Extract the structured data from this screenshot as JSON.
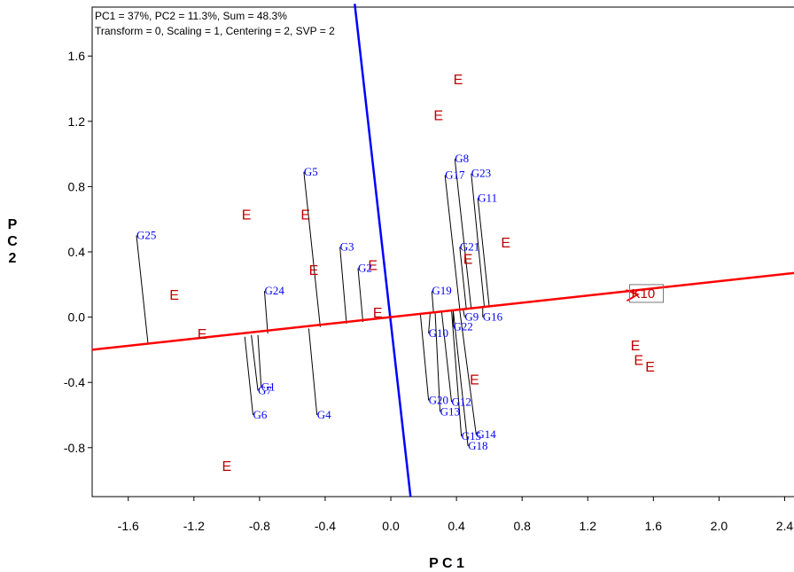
{
  "chart_data": {
    "type": "scatter",
    "annotation_line1": "PC1 = 37%, PC2 = 11.3%, Sum = 48.3%",
    "annotation_line2": "Transform = 0, Scaling = 1, Centering = 2, SVP = 2",
    "xlabel": "P C 1",
    "ylabel": [
      "P",
      "C",
      "2"
    ],
    "xlim": [
      -1.82,
      2.5
    ],
    "ylim": [
      -1.1,
      1.9
    ],
    "xticks": [
      -1.6,
      -1.2,
      -0.8,
      -0.4,
      0.0,
      0.4,
      0.8,
      1.2,
      1.6,
      2.0,
      2.4
    ],
    "xtick_labels": [
      "-1.6",
      "-1.2",
      "-0.8",
      "-0.4",
      "0.0",
      "0.4",
      "0.8",
      "1.2",
      "1.6",
      "2.0",
      "2.4"
    ],
    "yticks": [
      1.6,
      1.2,
      0.8,
      0.4,
      0.0,
      -0.4,
      -0.8
    ],
    "ytick_labels": [
      "1.6",
      "1.2",
      "0.8",
      "0.4",
      "0.0",
      "-0.4",
      "-0.8"
    ],
    "grid": false,
    "colors": {
      "genotype": "#0000ff",
      "environment": "#c00000",
      "axis_line": "#ff0000",
      "perp_line": "#0000ff"
    },
    "aec_axis": {
      "from": [
        -1.82,
        -0.2
      ],
      "to": [
        2.5,
        0.275
      ]
    },
    "perpendicular_axis": {
      "from": [
        -0.22,
        1.92
      ],
      "to": [
        0.12,
        -1.1
      ]
    },
    "ideal_environment": {
      "label": "K10",
      "x": 1.52,
      "y": 0.145,
      "arrow_from": [
        1.25,
        0.115
      ]
    },
    "genotypes": [
      {
        "label": "G1",
        "x": -0.79,
        "y": -0.43,
        "px": -0.81,
        "py": -0.11
      },
      {
        "label": "G2",
        "x": -0.2,
        "y": 0.3,
        "px": -0.17,
        "py": -0.03
      },
      {
        "label": "G3",
        "x": -0.31,
        "y": 0.43,
        "px": -0.27,
        "py": -0.04
      },
      {
        "label": "G4",
        "x": -0.45,
        "y": -0.6,
        "px": -0.5,
        "py": -0.07
      },
      {
        "label": "G5",
        "x": -0.53,
        "y": 0.89,
        "px": -0.43,
        "py": -0.06
      },
      {
        "label": "G6",
        "x": -0.84,
        "y": -0.6,
        "px": -0.89,
        "py": -0.12
      },
      {
        "label": "G7",
        "x": -0.81,
        "y": -0.45,
        "px": -0.85,
        "py": -0.11
      },
      {
        "label": "G8",
        "x": 0.39,
        "y": 0.97,
        "px": 0.49,
        "py": 0.05
      },
      {
        "label": "G9",
        "x": 0.45,
        "y": 0.0,
        "px": 0.44,
        "py": 0.05
      },
      {
        "label": "G10",
        "x": 0.23,
        "y": -0.1,
        "px": 0.24,
        "py": 0.03
      },
      {
        "label": "G11",
        "x": 0.53,
        "y": 0.73,
        "px": 0.6,
        "py": 0.06
      },
      {
        "label": "G12",
        "x": 0.37,
        "y": -0.52,
        "px": 0.31,
        "py": 0.03
      },
      {
        "label": "G13",
        "x": 0.3,
        "y": -0.58,
        "px": 0.27,
        "py": 0.03
      },
      {
        "label": "G14",
        "x": 0.52,
        "y": -0.72,
        "px": 0.42,
        "py": 0.04
      },
      {
        "label": "G15",
        "x": 0.43,
        "y": -0.73,
        "px": 0.37,
        "py": 0.04
      },
      {
        "label": "G16",
        "x": 0.56,
        "y": 0.0,
        "px": 0.56,
        "py": 0.06
      },
      {
        "label": "G17",
        "x": 0.33,
        "y": 0.87,
        "px": 0.42,
        "py": 0.05
      },
      {
        "label": "G18",
        "x": 0.47,
        "y": -0.79,
        "px": 0.38,
        "py": 0.04
      },
      {
        "label": "G19",
        "x": 0.25,
        "y": 0.16,
        "px": 0.26,
        "py": 0.03
      },
      {
        "label": "G20",
        "x": 0.23,
        "y": -0.51,
        "px": 0.18,
        "py": 0.02
      },
      {
        "label": "G21",
        "x": 0.42,
        "y": 0.43,
        "px": 0.46,
        "py": 0.05
      },
      {
        "label": "G22",
        "x": 0.38,
        "y": -0.06,
        "px": 0.38,
        "py": 0.04
      },
      {
        "label": "G23",
        "x": 0.49,
        "y": 0.88,
        "px": 0.57,
        "py": 0.06
      },
      {
        "label": "G24",
        "x": -0.77,
        "y": 0.16,
        "px": -0.75,
        "py": -0.1
      },
      {
        "label": "G25",
        "x": -1.55,
        "y": 0.5,
        "px": -1.48,
        "py": -0.16
      }
    ],
    "environments": [
      {
        "label": "E",
        "x": 0.41,
        "y": 1.46
      },
      {
        "label": "E",
        "x": 0.29,
        "y": 1.24
      },
      {
        "label": "E",
        "x": -0.88,
        "y": 0.63
      },
      {
        "label": "E",
        "x": -0.52,
        "y": 0.63
      },
      {
        "label": "E",
        "x": -0.47,
        "y": 0.29
      },
      {
        "label": "E",
        "x": -0.11,
        "y": 0.32
      },
      {
        "label": "E",
        "x": -1.32,
        "y": 0.14
      },
      {
        "label": "E",
        "x": -1.15,
        "y": -0.1
      },
      {
        "label": "E",
        "x": -0.08,
        "y": 0.03
      },
      {
        "label": "E",
        "x": 0.7,
        "y": 0.46
      },
      {
        "label": "E",
        "x": 0.47,
        "y": 0.36
      },
      {
        "label": "E",
        "x": 0.51,
        "y": -0.38
      },
      {
        "label": "E",
        "x": -1.0,
        "y": -0.91
      },
      {
        "label": "E",
        "x": 1.49,
        "y": -0.17
      },
      {
        "label": "E",
        "x": 1.51,
        "y": -0.26
      },
      {
        "label": "E",
        "x": 1.58,
        "y": -0.3
      }
    ]
  }
}
